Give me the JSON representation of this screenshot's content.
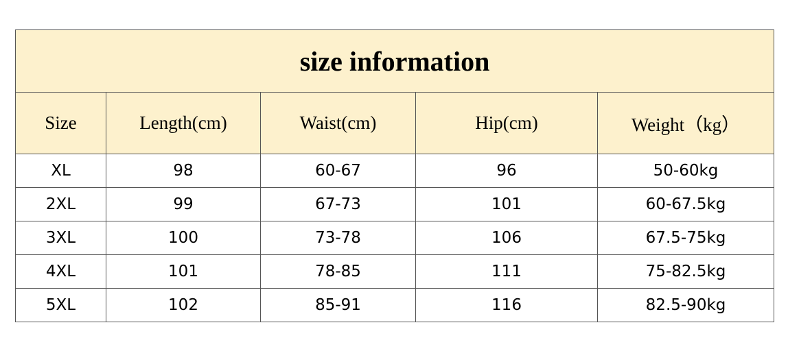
{
  "table": {
    "title": "size information",
    "header": [
      "Size",
      "Length(cm)",
      "Waist(cm)",
      "Hip(cm)",
      "Weight（kg）"
    ],
    "rows": [
      [
        "XL",
        "98",
        "60-67",
        "96",
        "50-60kg"
      ],
      [
        "2XL",
        "99",
        "67-73",
        "101",
        "60-67.5kg"
      ],
      [
        "3XL",
        "100",
        "73-78",
        "106",
        "67.5-75kg"
      ],
      [
        "4XL",
        "101",
        "78-85",
        "111",
        "75-82.5kg"
      ],
      [
        "5XL",
        "102",
        "85-91",
        "116",
        "82.5-90kg"
      ]
    ]
  }
}
